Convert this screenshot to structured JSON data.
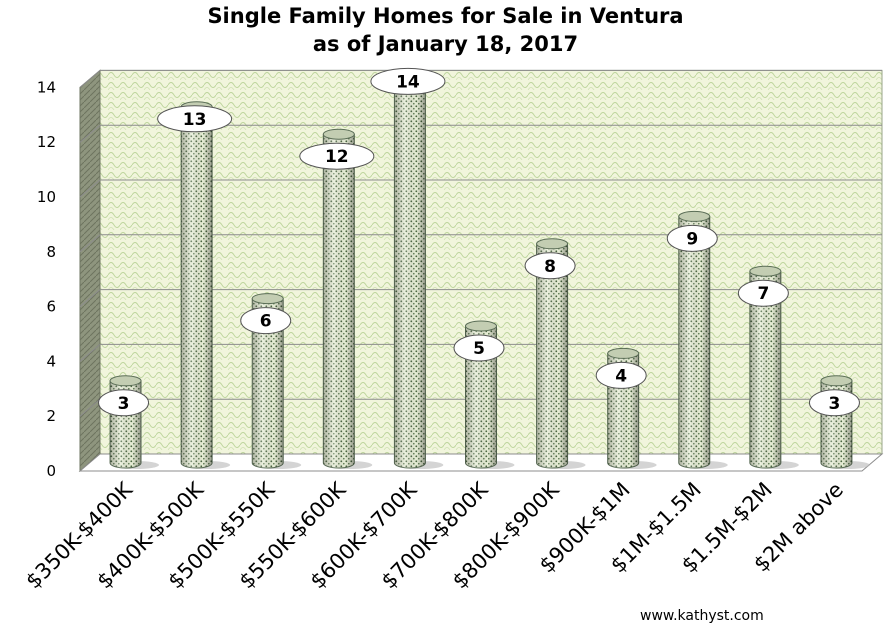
{
  "chart_data": {
    "type": "bar",
    "title_line1": "Single Family Homes for Sale in Ventura",
    "title_line2": "as of January 18, 2017",
    "categories": [
      "$350K-$400K",
      "$400K-$500K",
      "$500K-$550K",
      "$550K-$600K",
      "$600K-$700K",
      "$700K-$800K",
      "$800K-$900K",
      "$900K-$1M",
      "$1M-$1.5M",
      "$1.5M-$2M",
      "$2M above"
    ],
    "values": [
      3,
      13,
      6,
      12,
      14,
      5,
      8,
      4,
      9,
      7,
      3
    ],
    "ylim": [
      0,
      14
    ],
    "yticks": [
      0,
      2,
      4,
      6,
      8,
      10,
      12,
      14
    ],
    "grid": true,
    "legend": "none",
    "bar_shape": "cylinder",
    "colors": {
      "bar_fill": "#e4ecd0",
      "bar_dots": "#4e6b47",
      "wall": "#eef3d6",
      "wall_pattern": "#bcd39a",
      "side_wall": "#8a9279",
      "grid": "#8c8c8c"
    }
  },
  "footer": {
    "watermark": "www.kathyst.com"
  }
}
